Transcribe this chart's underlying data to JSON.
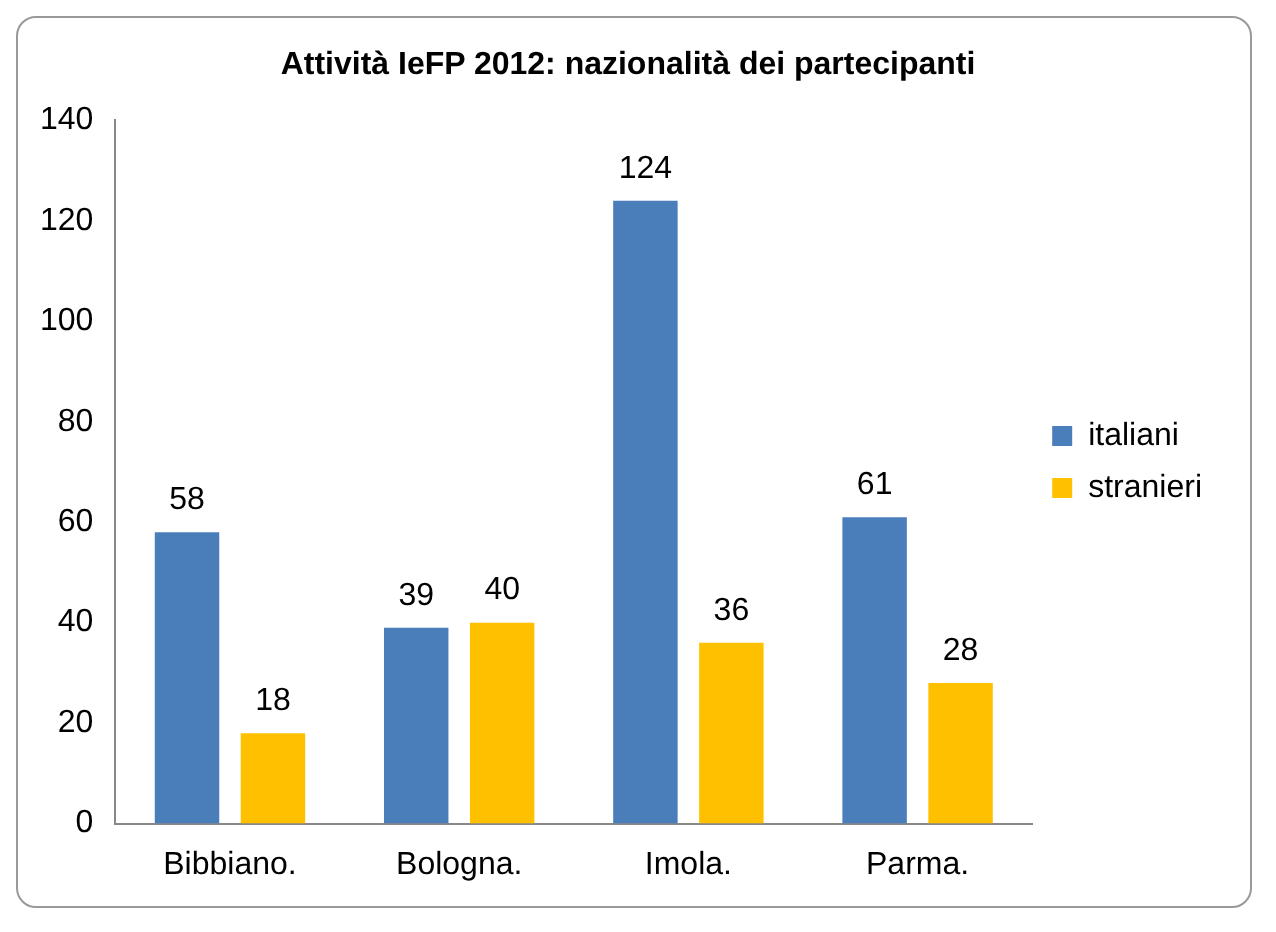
{
  "chart_data": {
    "type": "bar",
    "title": "Attività IeFP 2012: nazionalità dei partecipanti",
    "categories": [
      "Bibbiano.",
      "Bologna.",
      "Imola.",
      "Parma."
    ],
    "series": [
      {
        "name": "italiani",
        "color": "#4a7ebb",
        "values": [
          58,
          39,
          124,
          61
        ]
      },
      {
        "name": "stranieri",
        "color": "#ffc000",
        "values": [
          18,
          40,
          36,
          28
        ]
      }
    ],
    "ylim": [
      0,
      140
    ],
    "yticks": [
      0,
      20,
      40,
      60,
      80,
      100,
      120,
      140
    ],
    "grid": false,
    "legend": "right",
    "data_labels": true
  }
}
